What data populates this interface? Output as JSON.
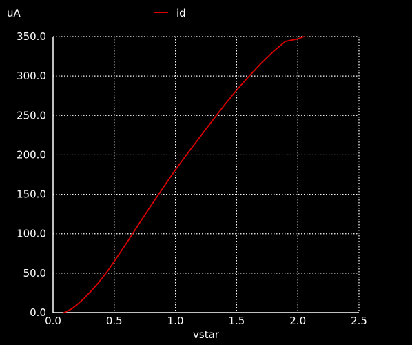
{
  "chart_data": {
    "type": "line",
    "xlabel": "vstar",
    "ylabel": "uA",
    "xlim": [
      0.0,
      2.5
    ],
    "ylim": [
      0.0,
      350.0
    ],
    "xticks": [
      "0.0",
      "0.5",
      "1.0",
      "1.5",
      "2.0",
      "2.5"
    ],
    "yticks": [
      "0.0",
      "50.0",
      "100.0",
      "150.0",
      "200.0",
      "250.0",
      "300.0",
      "350.0"
    ],
    "grid": true,
    "legend_position": "top-center",
    "series": [
      {
        "name": "id",
        "color": "#dd0000",
        "x": [
          0.09,
          0.1,
          0.15,
          0.2,
          0.25,
          0.3,
          0.35,
          0.4,
          0.45,
          0.5,
          0.6,
          0.7,
          0.8,
          0.9,
          1.0,
          1.1,
          1.2,
          1.3,
          1.4,
          1.5,
          1.6,
          1.7,
          1.8,
          1.9,
          2.0,
          2.05
        ],
        "y": [
          0.0,
          0.6,
          4.5,
          10.5,
          17.5,
          25.5,
          34.0,
          43.5,
          53.5,
          65.0,
          88.0,
          112.0,
          135.5,
          158.5,
          181.0,
          202.0,
          222.5,
          243.0,
          263.0,
          282.0,
          299.5,
          316.0,
          331.0,
          344.0,
          347.0,
          350.0
        ]
      }
    ]
  },
  "colors": {
    "background": "#000000",
    "axis": "#ffffff",
    "grid": "#ffffff",
    "series": "#dd0000"
  }
}
